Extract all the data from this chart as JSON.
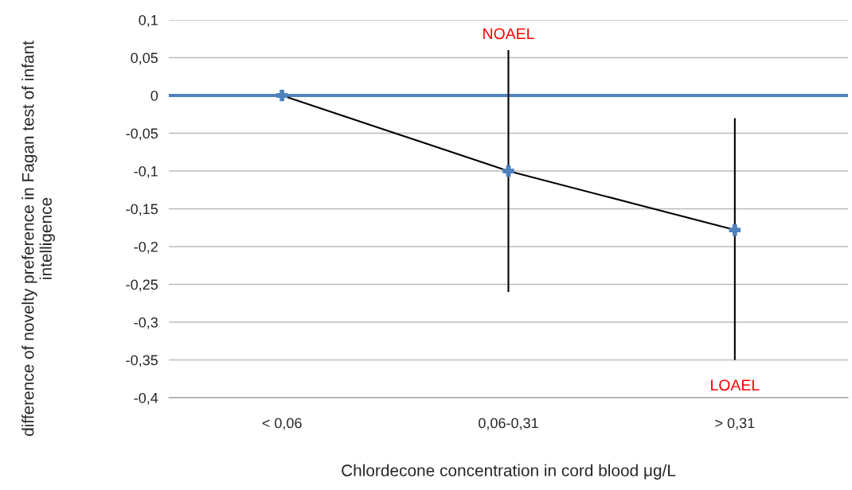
{
  "chart_data": {
    "type": "line",
    "xlabel": "Chlordecone concentration in cord blood μg/L",
    "ylabel": "difference of novelty preference in Fagan test of infant intelligence",
    "categories": [
      "< 0,06",
      "0,06-0,31",
      "> 0,31"
    ],
    "series": [
      {
        "color": "#000000",
        "values": [
          0,
          -0.1,
          -0.178
        ],
        "errors": [
          null,
          [
            -0.26,
            0.06
          ],
          [
            -0.35,
            -0.03
          ]
        ]
      },
      {
        "type": "scatter",
        "color": "#4f81bd",
        "marker": "cross",
        "values": [
          0,
          -0.1,
          -0.178
        ]
      }
    ],
    "ref_lines": [
      {
        "axis": "y",
        "value": 0,
        "color": "#4f81bd"
      }
    ],
    "annotations": [
      "NOAEL",
      "LOAEL"
    ],
    "ylim": [
      -0.4,
      0.1
    ],
    "yticks": [
      {
        "value": 0.1,
        "label": "0,1"
      },
      {
        "value": 0.05,
        "label": "0,05"
      },
      0,
      {
        "value": -0.05,
        "label": "-0,05"
      },
      {
        "value": -0.1,
        "label": "-0,1"
      },
      {
        "value": -0.15,
        "label": "-0,15"
      },
      {
        "value": -0.2,
        "label": "-0,2"
      },
      {
        "value": -0.25,
        "label": "-0,25"
      },
      {
        "value": -0.3,
        "label": "-0,3"
      },
      {
        "value": -0.35,
        "label": "-0,35"
      },
      {
        "value": -0.4,
        "label": "-0,4"
      }
    ],
    "grid": "y",
    "legend": false
  }
}
